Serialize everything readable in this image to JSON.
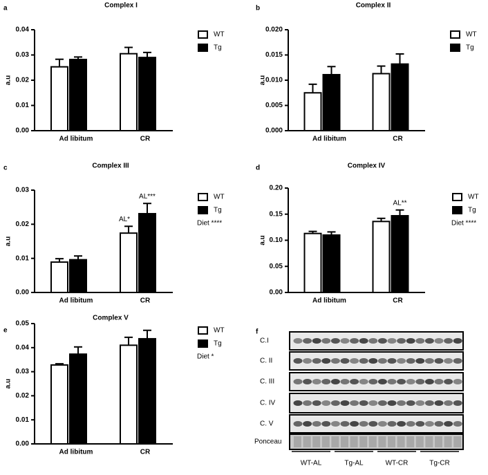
{
  "chart_data": [
    {
      "type": "bar",
      "panel": "a",
      "title": "Complex I",
      "ylabel": "a.u",
      "categories": [
        "Ad libitum",
        "CR"
      ],
      "series": [
        {
          "name": "WT",
          "color": "#ffffff",
          "values": [
            0.0253,
            0.0305
          ],
          "errors": [
            0.003,
            0.0025
          ]
        },
        {
          "name": "Tg",
          "color": "#000000",
          "values": [
            0.0282,
            0.029
          ],
          "errors": [
            0.001,
            0.002
          ]
        }
      ],
      "ylim": [
        0,
        0.04
      ],
      "yticks": [
        {
          "value": 0,
          "label": "0.00"
        },
        {
          "value": 0.01,
          "label": "0.01"
        },
        {
          "value": 0.02,
          "label": "0.02"
        },
        {
          "value": 0.03,
          "label": "0.03"
        },
        {
          "value": 0.04,
          "label": "0.04"
        }
      ]
    },
    {
      "type": "bar",
      "panel": "b",
      "title": "Complex II",
      "ylabel": "a.u",
      "categories": [
        "Ad libitum",
        "CR"
      ],
      "series": [
        {
          "name": "WT",
          "color": "#ffffff",
          "values": [
            0.0075,
            0.0113
          ],
          "errors": [
            0.0017,
            0.0015
          ]
        },
        {
          "name": "Tg",
          "color": "#000000",
          "values": [
            0.0111,
            0.0132
          ],
          "errors": [
            0.0016,
            0.002
          ]
        }
      ],
      "ylim": [
        0,
        0.02
      ],
      "yticks": [
        {
          "value": 0,
          "label": "0.000"
        },
        {
          "value": 0.005,
          "label": "0.005"
        },
        {
          "value": 0.01,
          "label": "0.010"
        },
        {
          "value": 0.015,
          "label": "0.015"
        },
        {
          "value": 0.02,
          "label": "0.020"
        }
      ]
    },
    {
      "type": "bar",
      "panel": "c",
      "title": "Complex III",
      "ylabel": "a.u",
      "categories": [
        "Ad libitum",
        "CR"
      ],
      "series": [
        {
          "name": "WT",
          "color": "#ffffff",
          "values": [
            0.0089,
            0.0174
          ],
          "errors": [
            0.001,
            0.002
          ],
          "annotations": [
            null,
            "AL*"
          ]
        },
        {
          "name": "Tg",
          "color": "#000000",
          "values": [
            0.0096,
            0.0231
          ],
          "errors": [
            0.0011,
            0.003
          ],
          "annotations": [
            null,
            "AL***"
          ]
        }
      ],
      "legend_note": "Diet ****",
      "ylim": [
        0,
        0.03
      ],
      "yticks": [
        {
          "value": 0,
          "label": "0.00"
        },
        {
          "value": 0.01,
          "label": "0.01"
        },
        {
          "value": 0.02,
          "label": "0.02"
        },
        {
          "value": 0.03,
          "label": "0.03"
        }
      ]
    },
    {
      "type": "bar",
      "panel": "d",
      "title": "Complex IV",
      "ylabel": "a.u",
      "categories": [
        "Ad libitum",
        "CR"
      ],
      "series": [
        {
          "name": "WT",
          "color": "#ffffff",
          "values": [
            0.113,
            0.136
          ],
          "errors": [
            0.004,
            0.006
          ]
        },
        {
          "name": "Tg",
          "color": "#000000",
          "values": [
            0.11,
            0.147
          ],
          "errors": [
            0.006,
            0.011
          ],
          "annotations": [
            null,
            "AL**"
          ]
        }
      ],
      "legend_note": "Diet ****",
      "ylim": [
        0,
        0.2
      ],
      "yticks": [
        {
          "value": 0,
          "label": "0.00"
        },
        {
          "value": 0.05,
          "label": "0.05"
        },
        {
          "value": 0.1,
          "label": "0.10"
        },
        {
          "value": 0.15,
          "label": "0.15"
        },
        {
          "value": 0.2,
          "label": "0.20"
        }
      ]
    },
    {
      "type": "bar",
      "panel": "e",
      "title": "Complex V",
      "ylabel": "a.u",
      "categories": [
        "Ad libitum",
        "CR"
      ],
      "series": [
        {
          "name": "WT",
          "color": "#ffffff",
          "values": [
            0.0328,
            0.041
          ],
          "errors": [
            0.0005,
            0.0033
          ]
        },
        {
          "name": "Tg",
          "color": "#000000",
          "values": [
            0.0373,
            0.0437
          ],
          "errors": [
            0.003,
            0.0035
          ]
        }
      ],
      "legend_note": "Diet *",
      "ylim": [
        0,
        0.05
      ],
      "yticks": [
        {
          "value": 0,
          "label": "0.00"
        },
        {
          "value": 0.01,
          "label": "0.01"
        },
        {
          "value": 0.02,
          "label": "0.02"
        },
        {
          "value": 0.03,
          "label": "0.03"
        },
        {
          "value": 0.04,
          "label": "0.04"
        },
        {
          "value": 0.05,
          "label": "0.05"
        }
      ]
    }
  ],
  "blot": {
    "panel": "f",
    "rows": [
      "C.I",
      "C. II",
      "C. III",
      "C. IV",
      "C. V",
      "Ponceau"
    ],
    "groups": [
      "WT-AL",
      "Tg-AL",
      "WT-CR",
      "Tg-CR"
    ]
  }
}
